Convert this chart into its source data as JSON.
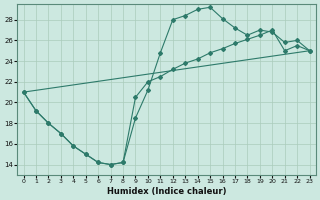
{
  "xlabel": "Humidex (Indice chaleur)",
  "bg_color": "#cce8e0",
  "line_color": "#2d7a6a",
  "grid_color": "#aaccbb",
  "xlim": [
    -0.5,
    23.5
  ],
  "ylim": [
    13.0,
    29.5
  ],
  "xticks": [
    0,
    1,
    2,
    3,
    4,
    5,
    6,
    7,
    8,
    9,
    10,
    11,
    12,
    13,
    14,
    15,
    16,
    17,
    18,
    19,
    20,
    21,
    22,
    23
  ],
  "yticks": [
    14,
    16,
    18,
    20,
    22,
    24,
    26,
    28
  ],
  "series1_x": [
    0,
    1,
    2,
    3,
    4,
    5,
    6,
    7,
    8,
    9,
    10,
    11,
    12,
    13,
    14,
    15,
    16,
    17,
    18,
    19,
    20,
    21,
    22,
    23
  ],
  "series1_y": [
    21,
    19.2,
    18.0,
    17.0,
    15.8,
    15.0,
    14.2,
    14.0,
    14.2,
    18.5,
    21.2,
    24.8,
    28.0,
    28.4,
    29.0,
    29.2,
    28.1,
    27.2,
    26.5,
    27.0,
    26.8,
    25.8,
    26.0,
    25.0
  ],
  "series2_x": [
    0,
    1,
    2,
    3,
    4,
    5,
    6,
    7,
    8,
    9,
    10,
    11,
    12,
    13,
    14,
    15,
    16,
    17,
    18,
    19,
    20,
    21,
    22,
    23
  ],
  "series2_y": [
    21,
    19.2,
    18.0,
    17.0,
    15.8,
    15.0,
    14.2,
    14.0,
    14.2,
    20.5,
    22.0,
    22.5,
    23.2,
    23.8,
    24.2,
    24.8,
    25.2,
    25.7,
    26.1,
    26.5,
    27.0,
    25.0,
    25.5,
    25.0
  ],
  "series3_x": [
    0,
    23
  ],
  "series3_y": [
    21.0,
    25.0
  ]
}
